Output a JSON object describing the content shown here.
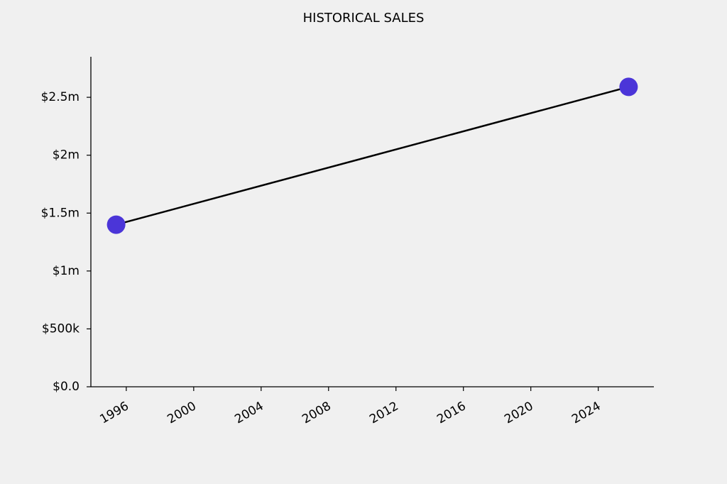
{
  "chart_data": {
    "type": "line",
    "title": "HISTORICAL SALES",
    "x": [
      1995.4,
      2025.8
    ],
    "values": [
      1400000,
      2590000
    ],
    "line_color": "#000000",
    "marker_color": "#4b35d8",
    "xlim": [
      1993.9,
      2027.3
    ],
    "xticks": [
      1996,
      2000,
      2004,
      2008,
      2012,
      2016,
      2020,
      2024
    ],
    "ylim": [
      0,
      2850000
    ],
    "yticks": [
      {
        "value": 0,
        "label": "$0.0"
      },
      {
        "value": 500000,
        "label": "$500k"
      },
      {
        "value": 1000000,
        "label": "$1m"
      },
      {
        "value": 1500000,
        "label": "$1.5m"
      },
      {
        "value": 2000000,
        "label": "$2m"
      },
      {
        "value": 2500000,
        "label": "$2.5m"
      }
    ],
    "grid": false
  }
}
